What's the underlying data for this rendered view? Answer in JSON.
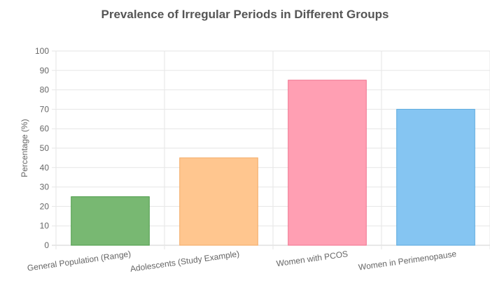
{
  "chart_data": {
    "type": "bar",
    "title": "Prevalence of Irregular Periods in Different Groups",
    "xlabel": "",
    "ylabel": "Percentage (%)",
    "ylim": [
      0,
      100
    ],
    "ytick_step": 10,
    "grid": true,
    "legend": "none",
    "categories": [
      "General Population (Range)",
      "Adolescents (Study Example)",
      "Women with PCOS",
      "Women in Perimenopause"
    ],
    "values": [
      25,
      45,
      85,
      70
    ],
    "colors": [
      "#78b872",
      "#ffc68f",
      "#ff9fb3",
      "#85c5f2"
    ],
    "border_colors": [
      "#4e9c4a",
      "#f3ab66",
      "#f0738f",
      "#5aa9de"
    ]
  }
}
